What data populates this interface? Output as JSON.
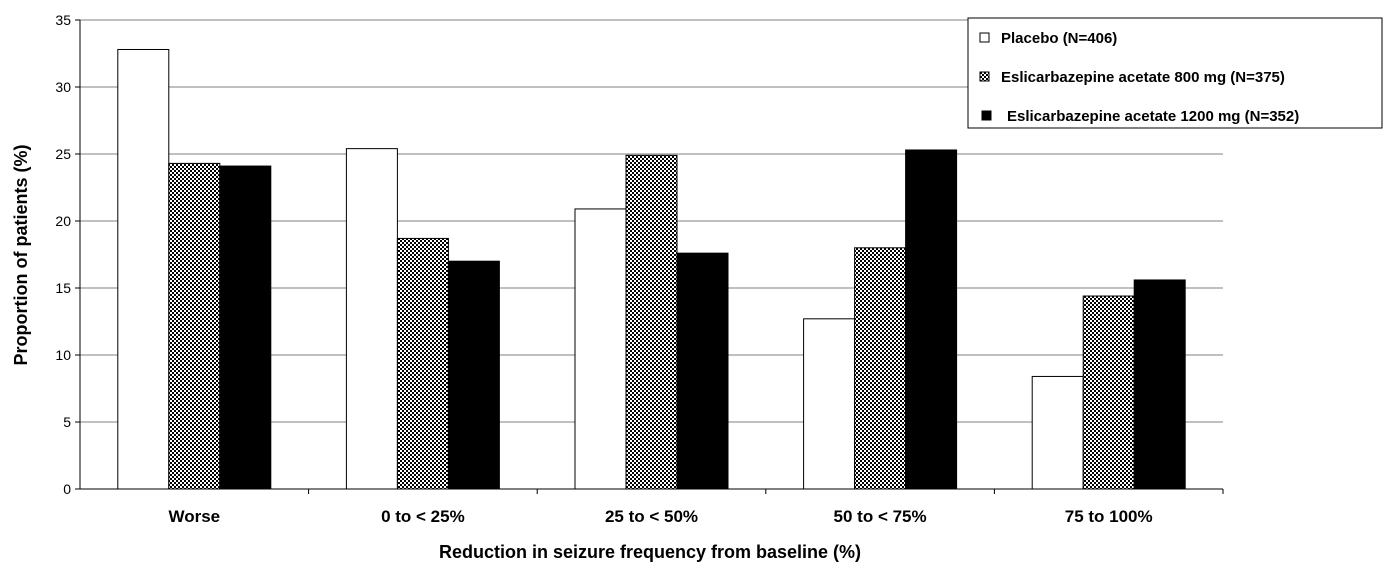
{
  "chart_data": {
    "type": "bar",
    "categories": [
      "Worse",
      "0 to < 25%",
      "25 to < 50%",
      "50 to < 75%",
      "75 to 100%"
    ],
    "series": [
      {
        "name": "Placebo (N=406)",
        "values": [
          32.8,
          25.4,
          20.9,
          12.7,
          8.4
        ],
        "fill": "white"
      },
      {
        "name": "Eslicarbazepine acetate 800 mg (N=375)",
        "values": [
          24.3,
          18.7,
          24.9,
          18.0,
          14.4
        ],
        "fill": "checker"
      },
      {
        "name": "Eslicarbazepine acetate 1200 mg (N=352)",
        "values": [
          24.1,
          17.0,
          17.6,
          25.3,
          15.6
        ],
        "fill": "black"
      }
    ],
    "yticks": [
      0,
      5,
      10,
      15,
      20,
      25,
      30,
      35
    ],
    "ylim": [
      0,
      35
    ],
    "xlabel": "Reduction in seizure frequency from baseline (%)",
    "ylabel": "Proportion of patients (%)",
    "grid": true,
    "legend_position": "top-right"
  },
  "colors": {
    "bar_outline": "#000000",
    "grid": "#808080"
  }
}
